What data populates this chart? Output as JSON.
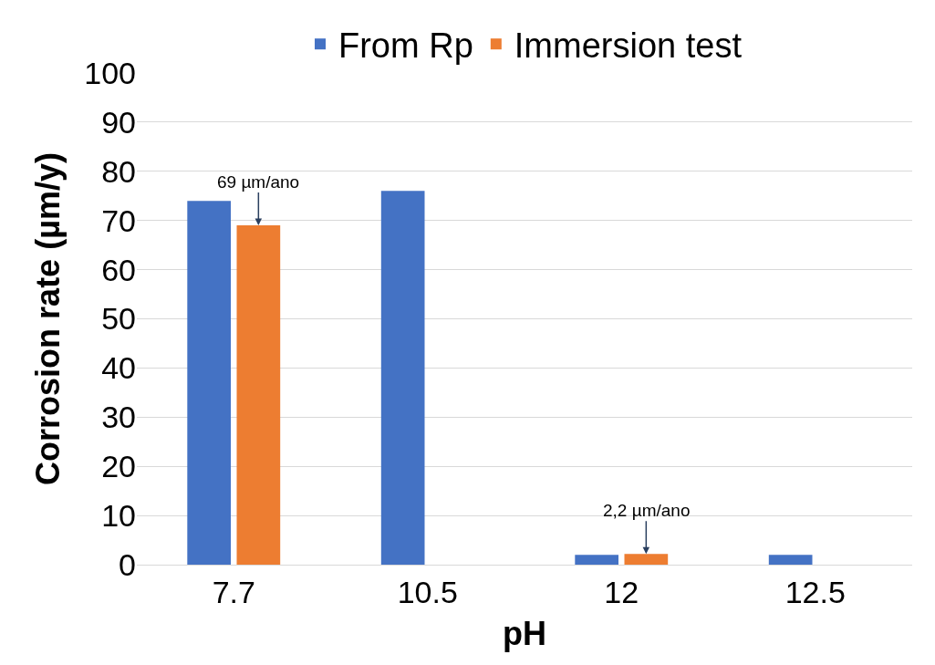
{
  "chart_data": {
    "type": "bar",
    "xlabel": "pH",
    "ylabel": "Corrosion rate (µm/y)",
    "categories": [
      "7.7",
      "10.5",
      "12",
      "12.5"
    ],
    "series": [
      {
        "name": "From Rp",
        "color": "#4472c4",
        "values": [
          74,
          76,
          2,
          2
        ]
      },
      {
        "name": "Immersion test",
        "color": "#ed7d31",
        "values": [
          69,
          null,
          2.2,
          null
        ]
      }
    ],
    "ylim": [
      0,
      100
    ],
    "yticks": [
      0,
      10,
      20,
      30,
      40,
      50,
      60,
      70,
      80,
      90,
      100
    ],
    "grid": "y",
    "legend": "top",
    "annotations": [
      {
        "text": "69 µm/ano",
        "x": "7.7",
        "y": 69
      },
      {
        "text": "2,2 µm/ano",
        "x": "12",
        "y": 2.2
      }
    ]
  }
}
